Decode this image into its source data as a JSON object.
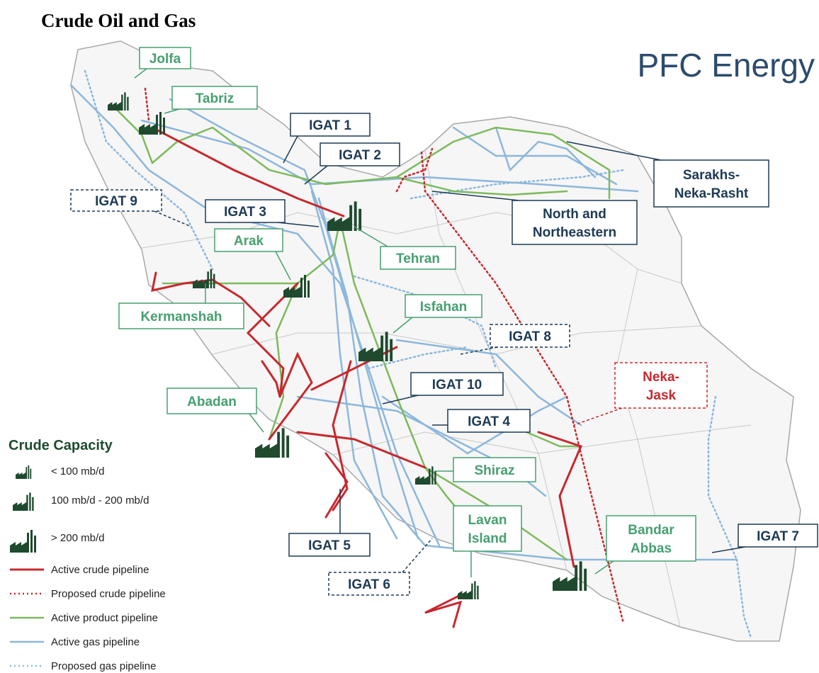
{
  "header": {
    "title": "Crude Oil and Gas",
    "logo": "PFC Energy"
  },
  "callouts": [
    {
      "lines": [
        "Jolfa"
      ]
    },
    {
      "lines": [
        "Tabriz"
      ]
    },
    {
      "lines": [
        "IGAT 1"
      ]
    },
    {
      "lines": [
        "IGAT 2"
      ]
    },
    {
      "lines": [
        "IGAT 9"
      ]
    },
    {
      "lines": [
        "IGAT 3"
      ]
    },
    {
      "lines": [
        "Arak"
      ]
    },
    {
      "lines": [
        "Tehran"
      ]
    },
    {
      "lines": [
        "Sarakhs-",
        "Neka-Rasht"
      ]
    },
    {
      "lines": [
        "North and",
        "Northeastern"
      ]
    },
    {
      "lines": [
        "Kermanshah"
      ]
    },
    {
      "lines": [
        "Isfahan"
      ]
    },
    {
      "lines": [
        "IGAT 8"
      ]
    },
    {
      "lines": [
        "IGAT 10"
      ]
    },
    {
      "lines": [
        "Neka-",
        "Jask"
      ]
    },
    {
      "lines": [
        "Abadan"
      ]
    },
    {
      "lines": [
        "IGAT 4"
      ]
    },
    {
      "lines": [
        "Shiraz"
      ]
    },
    {
      "lines": [
        "Lavan",
        "Island"
      ]
    },
    {
      "lines": [
        "Bandar",
        "Abbas"
      ]
    },
    {
      "lines": [
        "IGAT 7"
      ]
    },
    {
      "lines": [
        "IGAT 5"
      ]
    },
    {
      "lines": [
        "IGAT 6"
      ]
    }
  ],
  "legend": {
    "title": "Crude Capacity",
    "capacity": [
      "< 100 mb/d",
      "100 mb/d - 200 mb/d",
      "> 200 mb/d"
    ],
    "lines": [
      "Active crude pipeline",
      "Proposed crude pipeline",
      "Active product pipeline",
      "Active gas pipeline",
      "Proposed gas pipeline"
    ]
  }
}
